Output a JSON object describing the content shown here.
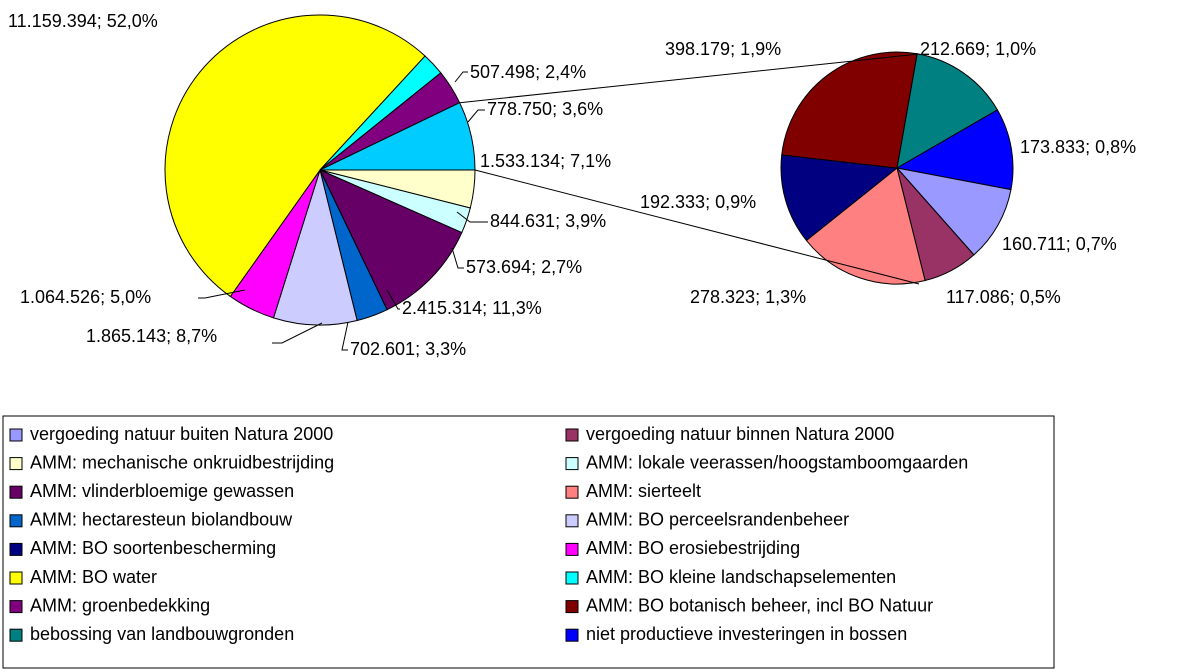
{
  "chart_data": {
    "type": "pie-of-pie",
    "slices": [
      {
        "name": "vergoeding natuur buiten Natura 2000",
        "color": "#9999FF",
        "pie": "secondary",
        "value": 160711,
        "value_label": "160.711; 0,7%"
      },
      {
        "name": "vergoeding natuur binnen Natura 2000",
        "color": "#993366",
        "pie": "secondary",
        "value": 117086,
        "value_label": "117.086; 0,5%"
      },
      {
        "name": "AMM: mechanische onkruidbestrijding",
        "color": "#FFFFCC",
        "pie": "main",
        "value": 844631,
        "value_label": "844.631; 3,9%"
      },
      {
        "name": "AMM: lokale veerassen/hoogstamboomgaarden",
        "color": "#CCFFFF",
        "pie": "main",
        "value": 573694,
        "value_label": "573.694; 2,7%"
      },
      {
        "name": "AMM: vlinderbloemige gewassen",
        "color": "#660066",
        "pie": "main",
        "value": 2415314,
        "value_label": "2.415.314; 11,3%"
      },
      {
        "name": "AMM: sierteelt",
        "color": "#FF8080",
        "pie": "secondary",
        "value": 278323,
        "value_label": "278.323; 1,3%"
      },
      {
        "name": "AMM: hectaresteun biolandbouw",
        "color": "#0066CC",
        "pie": "main",
        "value": 702601,
        "value_label": "702.601; 3,3%"
      },
      {
        "name": "AMM: BO perceelsrandenbeheer",
        "color": "#CCCCFF",
        "pie": "main",
        "value": 1865143,
        "value_label": "1.865.143; 8,7%"
      },
      {
        "name": "AMM: BO soortenbescherming",
        "color": "#000080",
        "pie": "secondary",
        "value": 192333,
        "value_label": "192.333; 0,9%"
      },
      {
        "name": "AMM: BO erosiebestrijding",
        "color": "#FF00FF",
        "pie": "main",
        "value": 1064526,
        "value_label": "1.064.526; 5,0%"
      },
      {
        "name": "AMM: BO water",
        "color": "#FFFF00",
        "pie": "main",
        "value": 11159394,
        "value_label": "11.159.394; 52,0%"
      },
      {
        "name": "AMM: BO kleine landschapselementen",
        "color": "#00FFFF",
        "pie": "main",
        "value": 507498,
        "value_label": "507.498; 2,4%"
      },
      {
        "name": "AMM: groenbedekking",
        "color": "#800080",
        "pie": "main",
        "value": 778750,
        "value_label": "778.750; 3,6%"
      },
      {
        "name": "AMM: BO botanisch beheer, incl BO Natuur",
        "color": "#800000",
        "pie": "secondary",
        "value": 398179,
        "value_label": "398.179; 1,9%"
      },
      {
        "name": "bebossing van landbouwgronden",
        "color": "#008080",
        "pie": "secondary",
        "value": 212669,
        "value_label": "212.669; 1,0%"
      },
      {
        "name": "niet productieve investeringen in bossen",
        "color": "#0000FF",
        "pie": "secondary",
        "value": 173833,
        "value_label": "173.833; 0,8%"
      }
    ],
    "other_slice": {
      "color": "#00CCFF",
      "value": 1533134,
      "value_label": "1.533.134; 7,1%"
    }
  }
}
